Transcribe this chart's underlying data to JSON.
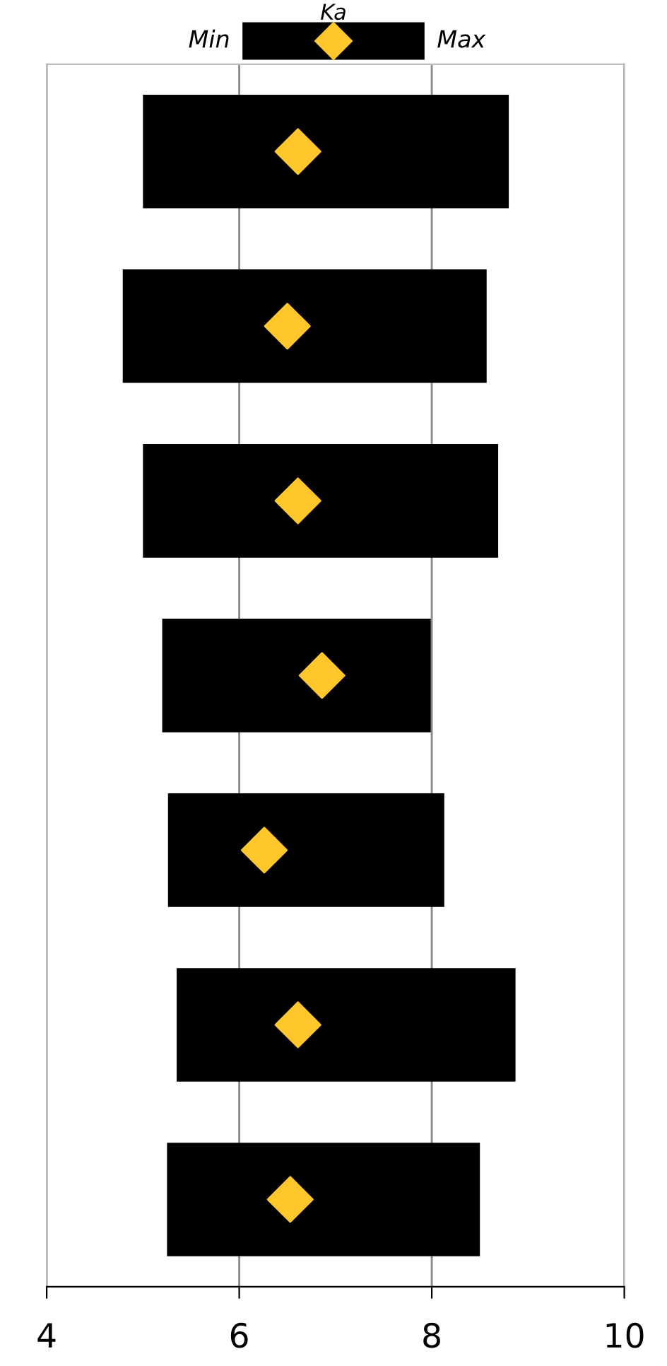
{
  "chart_data": {
    "type": "bar",
    "orientation": "horizontal",
    "categories": [
      null,
      null,
      null,
      null,
      null,
      null,
      null
    ],
    "series": [
      {
        "color": "#000000",
        "base": [
          5.0,
          4.79,
          5.0,
          5.2,
          5.26,
          5.35,
          5.25
        ],
        "values": [
          3.8,
          3.78,
          3.69,
          2.79,
          2.87,
          3.52,
          3.25
        ]
      },
      {
        "type": "scatter",
        "name": "Ka",
        "color": "#ffc72c",
        "marker": "diamond",
        "values": [
          6.61,
          6.5,
          6.61,
          6.86,
          6.26,
          6.61,
          6.53
        ]
      }
    ],
    "annotations": [
      "Min",
      "Max"
    ],
    "xlim": [
      4,
      10
    ],
    "xticks": [
      4,
      6,
      8,
      10
    ],
    "grid": "x",
    "legend": "top"
  }
}
